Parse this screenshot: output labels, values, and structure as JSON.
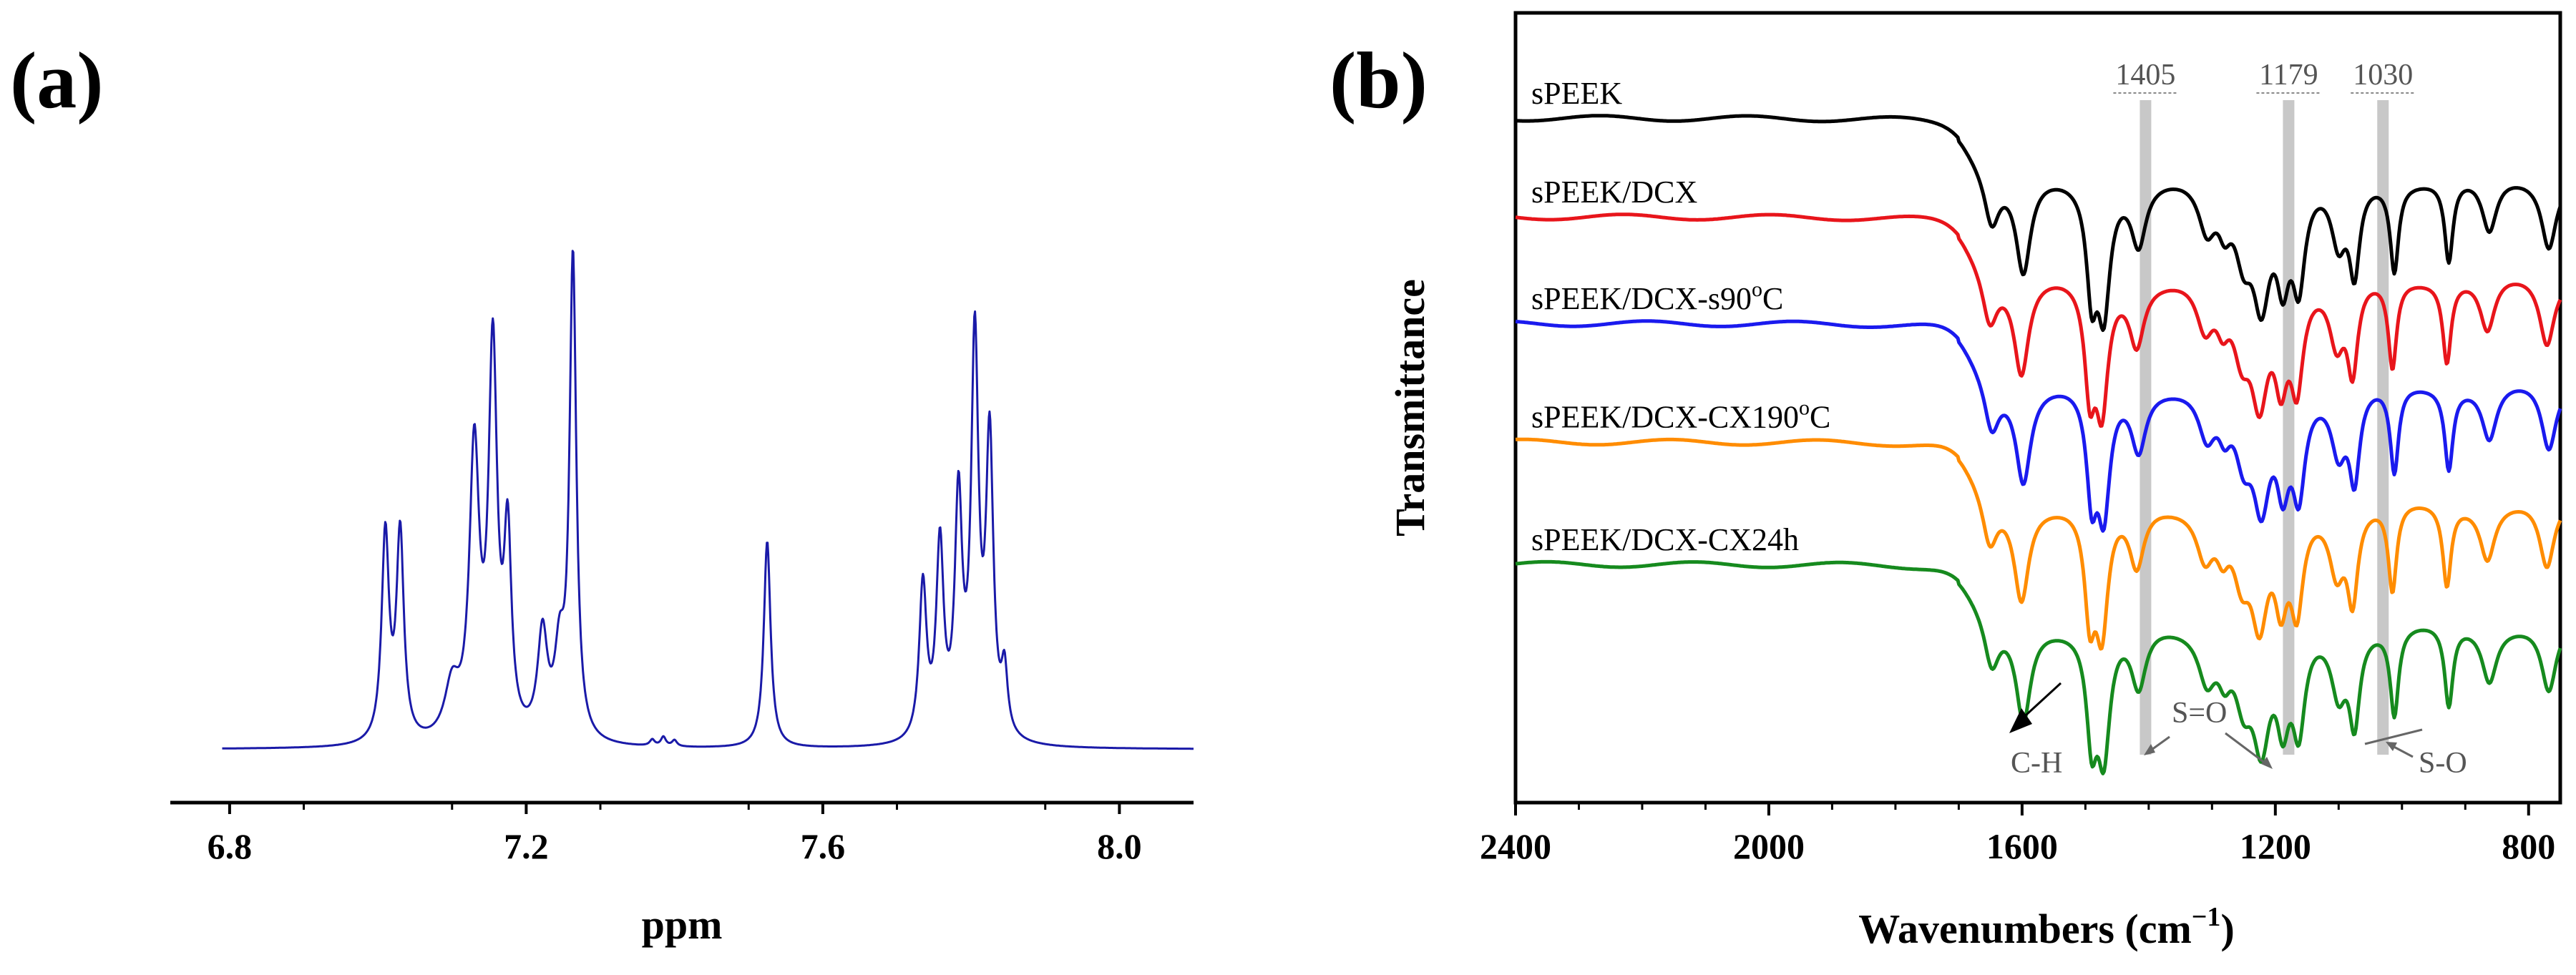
{
  "chart_data": [
    {
      "panel_label": "(a)",
      "type": "line",
      "subtype": "1H NMR spectrum",
      "xlabel": "ppm",
      "ylabel": "",
      "xlim": [
        6.72,
        8.1
      ],
      "ylim": [
        0,
        1
      ],
      "xticks": [
        6.8,
        7.2,
        7.6,
        8.0
      ],
      "xtick_labels": [
        "6.8",
        "7.2",
        "7.6",
        "8.0"
      ],
      "baseline": 0.02,
      "line_color": "#1a1aa8",
      "peaks": [
        {
          "ppm": 7.01,
          "height": 0.4,
          "width": 0.006
        },
        {
          "ppm": 7.03,
          "height": 0.4,
          "width": 0.006
        },
        {
          "ppm": 7.1,
          "height": 0.1,
          "width": 0.012
        },
        {
          "ppm": 7.13,
          "height": 0.55,
          "width": 0.008
        },
        {
          "ppm": 7.155,
          "height": 0.74,
          "width": 0.007
        },
        {
          "ppm": 7.175,
          "height": 0.37,
          "width": 0.006
        },
        {
          "ppm": 7.222,
          "height": 0.2,
          "width": 0.008
        },
        {
          "ppm": 7.245,
          "height": 0.15,
          "width": 0.008
        },
        {
          "ppm": 7.263,
          "height": 0.93,
          "width": 0.0055
        },
        {
          "ppm": 7.37,
          "height": 0.012,
          "width": 0.004
        },
        {
          "ppm": 7.385,
          "height": 0.018,
          "width": 0.004
        },
        {
          "ppm": 7.4,
          "height": 0.012,
          "width": 0.004
        },
        {
          "ppm": 7.525,
          "height": 0.4,
          "width": 0.0055
        },
        {
          "ppm": 7.735,
          "height": 0.3,
          "width": 0.006
        },
        {
          "ppm": 7.758,
          "height": 0.37,
          "width": 0.006
        },
        {
          "ppm": 7.783,
          "height": 0.45,
          "width": 0.006
        },
        {
          "ppm": 7.805,
          "height": 0.76,
          "width": 0.006
        },
        {
          "ppm": 7.825,
          "height": 0.57,
          "width": 0.006
        },
        {
          "ppm": 7.845,
          "height": 0.12,
          "width": 0.005
        }
      ]
    },
    {
      "panel_label": "(b)",
      "type": "line",
      "subtype": "FTIR spectra (stacked)",
      "xlabel": "Wavenumbers (cm",
      "xlabel_superscript": "−1",
      "xlabel_close": ")",
      "ylabel": "Transmittance",
      "xlim": [
        2400,
        750
      ],
      "x_reversed": true,
      "xticks": [
        2400,
        2000,
        1600,
        1200,
        800
      ],
      "xtick_labels": [
        "2400",
        "2000",
        "1600",
        "1200",
        "800"
      ],
      "series": [
        {
          "name": "sPEEK",
          "label_parts": [
            "sPEEK"
          ],
          "color": "#000000",
          "offset": 0.02
        },
        {
          "name": "sPEEK/DCX",
          "label_parts": [
            "sPEEK/DCX"
          ],
          "color": "#e8151b",
          "offset": 0.145
        },
        {
          "name": "sPEEK/DCX-s90°C",
          "label_parts": [
            "sPEEK/DCX-s90",
            "o",
            "C"
          ],
          "color": "#1a1aee",
          "offset": 0.28
        },
        {
          "name": "sPEEK/DCX-CX190°C",
          "label_parts": [
            "sPEEK/DCX-CX190",
            "o",
            "C"
          ],
          "color": "#ff8c00",
          "offset": 0.43
        },
        {
          "name": "sPEEK/DCX-CX24h",
          "label_parts": [
            "sPEEK/DCX-CX24h"
          ],
          "color": "#168a1e",
          "offset": 0.585
        }
      ],
      "ir_bands": [
        {
          "wn": 1648,
          "depth": 0.075,
          "width": 14
        },
        {
          "wn": 1598,
          "depth": 0.14,
          "width": 14
        },
        {
          "wn": 1490,
          "depth": 0.15,
          "width": 10
        },
        {
          "wn": 1471,
          "depth": 0.18,
          "width": 12
        },
        {
          "wn": 1416,
          "depth": 0.09,
          "width": 14
        },
        {
          "wn": 1308,
          "depth": 0.07,
          "width": 16
        },
        {
          "wn": 1280,
          "depth": 0.05,
          "width": 12
        },
        {
          "wn": 1250,
          "depth": 0.09,
          "width": 16
        },
        {
          "wn": 1222,
          "depth": 0.16,
          "width": 16
        },
        {
          "wn": 1188,
          "depth": 0.12,
          "width": 12
        },
        {
          "wn": 1163,
          "depth": 0.14,
          "width": 12
        },
        {
          "wn": 1100,
          "depth": 0.09,
          "width": 14
        },
        {
          "wn": 1075,
          "depth": 0.13,
          "width": 10
        },
        {
          "wn": 1012,
          "depth": 0.13,
          "width": 8
        },
        {
          "wn": 926,
          "depth": 0.12,
          "width": 8
        },
        {
          "wn": 862,
          "depth": 0.08,
          "width": 14
        },
        {
          "wn": 768,
          "depth": 0.1,
          "width": 14
        }
      ],
      "marked_bands": [
        {
          "wn": 1405,
          "label": "1405"
        },
        {
          "wn": 1179,
          "label": "1179"
        },
        {
          "wn": 1030,
          "label": "1030"
        }
      ],
      "annotations": [
        "C-H",
        "S=O",
        "S-O"
      ]
    }
  ]
}
